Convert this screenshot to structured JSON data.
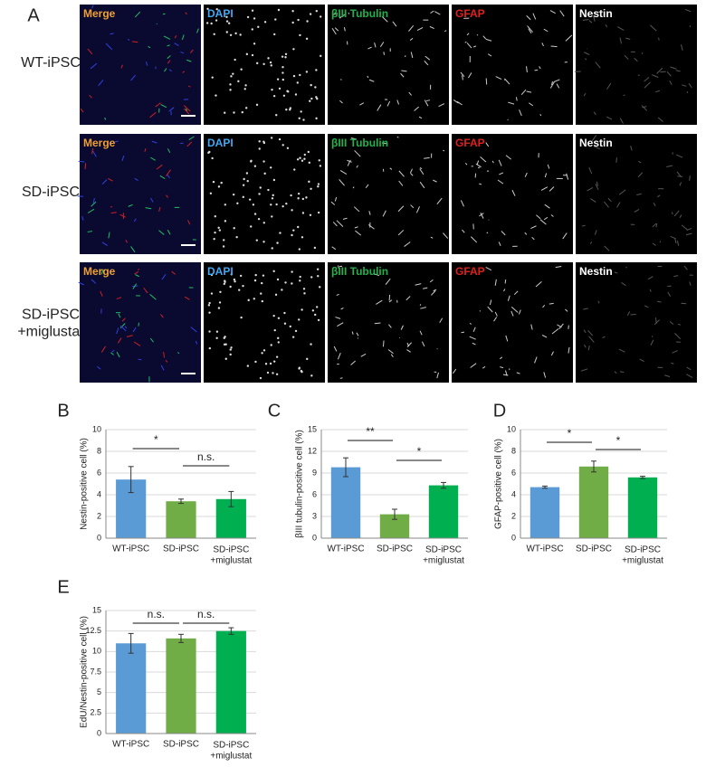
{
  "panel_a": {
    "label": "A",
    "rows": [
      "WT-iPSC",
      "SD-iPSC",
      "SD-iPSC\n+miglustat"
    ],
    "columns": [
      "Merge",
      "DAPI",
      "βIII Tubulin",
      "GFAP",
      "Nestin"
    ]
  },
  "chart_data": [
    {
      "type": "bar",
      "panel": "B",
      "ylabel": "Nestin-positive cell (%)",
      "categories": [
        "WT-iPSC",
        "SD-iPSC",
        "SD-iPSC\n+miglustat"
      ],
      "values": [
        5.4,
        3.4,
        3.6
      ],
      "errors": [
        1.2,
        0.2,
        0.7
      ],
      "colors": [
        "#5b9bd5",
        "#70ad47",
        "#00b050"
      ],
      "ylim": [
        0,
        10
      ],
      "yticks": [
        0,
        2,
        4,
        6,
        8,
        10
      ],
      "grid": true,
      "annotations": [
        "*",
        "n.s."
      ]
    },
    {
      "type": "bar",
      "panel": "C",
      "ylabel": "βIII tubulin-positive cell (%)",
      "categories": [
        "WT-iPSC",
        "SD-iPSC",
        "SD-iPSC\n+miglustat"
      ],
      "values": [
        9.8,
        3.3,
        7.3
      ],
      "errors": [
        1.3,
        0.7,
        0.4
      ],
      "colors": [
        "#5b9bd5",
        "#70ad47",
        "#00b050"
      ],
      "ylim": [
        0,
        15
      ],
      "yticks": [
        0,
        3,
        6,
        9,
        12,
        15
      ],
      "grid": true,
      "annotations": [
        "**",
        "*"
      ]
    },
    {
      "type": "bar",
      "panel": "D",
      "ylabel": "GFAP-positive cell (%)",
      "categories": [
        "WT-iPSC",
        "SD-iPSC",
        "SD-iPSC\n+miglustat"
      ],
      "values": [
        4.7,
        6.6,
        5.6
      ],
      "errors": [
        0.1,
        0.5,
        0.1
      ],
      "colors": [
        "#5b9bd5",
        "#70ad47",
        "#00b050"
      ],
      "ylim": [
        0,
        10
      ],
      "yticks": [
        0,
        2,
        4,
        6,
        8,
        10
      ],
      "grid": true,
      "annotations": [
        "*",
        "*"
      ]
    },
    {
      "type": "bar",
      "panel": "E",
      "ylabel": "EdU/Nestin-positive cell (%)",
      "categories": [
        "WT-iPSC",
        "SD-iPSC",
        "SD-iPSC\n+miglustat"
      ],
      "values": [
        11.0,
        11.6,
        12.5
      ],
      "errors": [
        1.2,
        0.5,
        0.4
      ],
      "colors": [
        "#5b9bd5",
        "#70ad47",
        "#00b050"
      ],
      "ylim": [
        0,
        15
      ],
      "yticks": [
        0,
        2.5,
        5,
        7.5,
        10,
        12.5,
        15
      ],
      "grid": true,
      "annotations": [
        "n.s.",
        "n.s."
      ]
    }
  ]
}
